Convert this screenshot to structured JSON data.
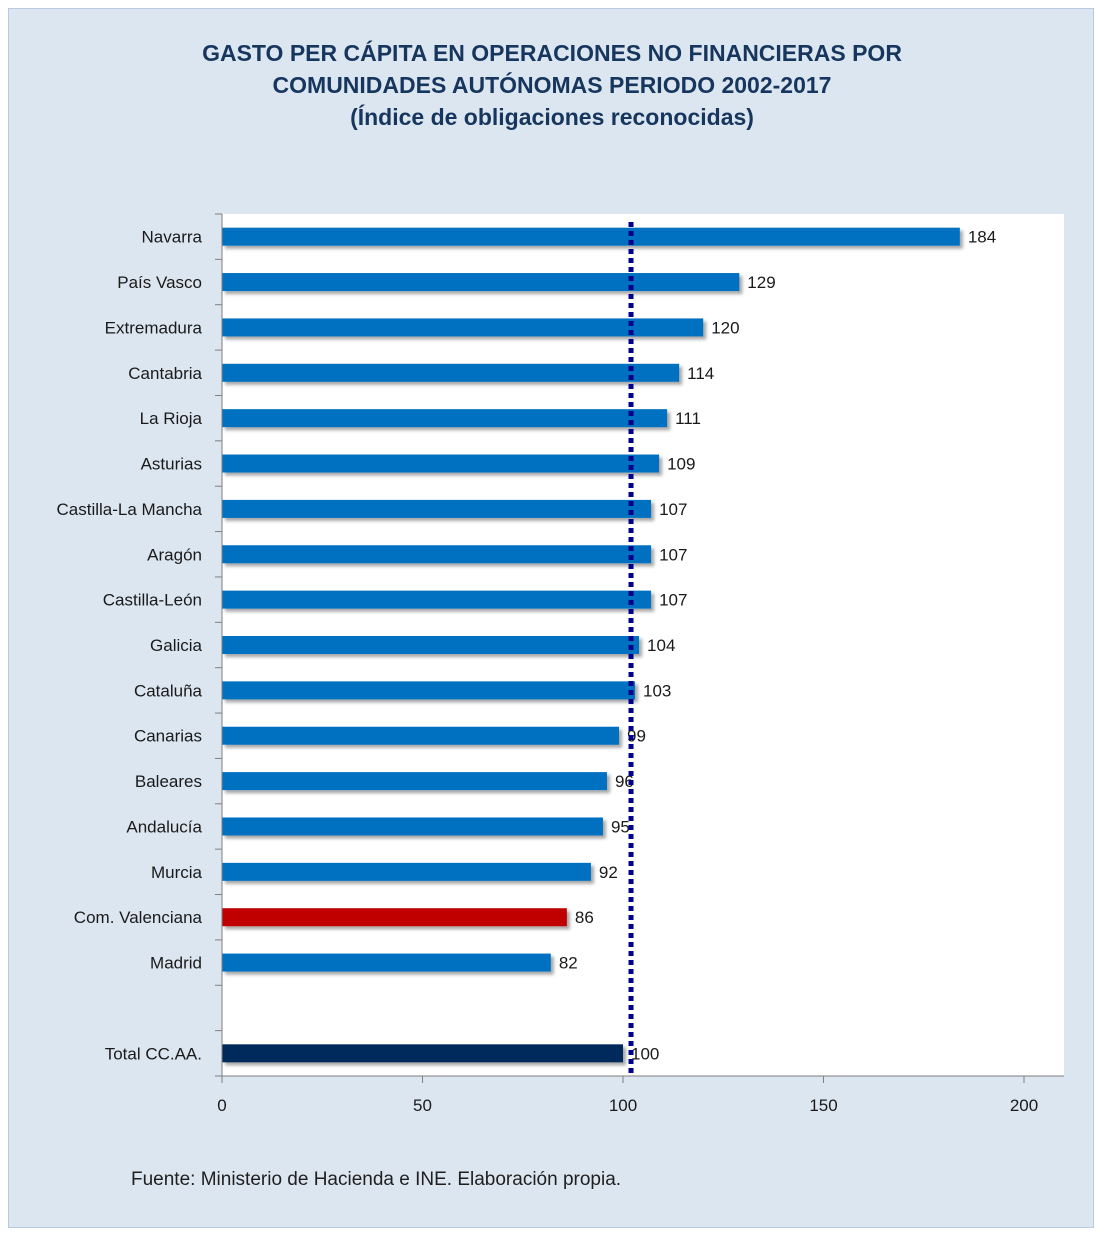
{
  "chart_title": {
    "line1": "GASTO PER CÁPITA EN OPERACIONES NO FINANCIERAS POR",
    "line2": "COMUNIDADES AUTÓNOMAS PERIODO 2002-2017",
    "line3": "(Índice de obligaciones reconocidas)"
  },
  "source_note": "Fuente: Ministerio de Hacienda e INE. Elaboración propia.",
  "chart_data": {
    "type": "bar",
    "orientation": "horizontal",
    "categories": [
      "Navarra",
      "País Vasco",
      "Extremadura",
      "Cantabria",
      "La Rioja",
      "Asturias",
      "Castilla-La Mancha",
      "Aragón",
      "Castilla-León",
      "Galicia",
      "Cataluña",
      "Canarias",
      "Baleares",
      "Andalucía",
      "Murcia",
      "Com. Valenciana",
      "Madrid",
      "",
      "Total CC.AA."
    ],
    "values": [
      184,
      129,
      120,
      114,
      111,
      109,
      107,
      107,
      107,
      104,
      103,
      99,
      96,
      95,
      92,
      86,
      82,
      null,
      100
    ],
    "data_labels": [
      "184",
      "129",
      "120",
      "114",
      "111",
      "109",
      "107",
      "107",
      "107",
      "104",
      "103",
      "99",
      "96",
      "95",
      "92",
      "86",
      "82",
      "",
      "100"
    ],
    "bar_colors": {
      "default": "#0070c0",
      "Com. Valenciana": "#c00000",
      "Total CC.AA.": "#002a5c"
    },
    "xlim": [
      0,
      200
    ],
    "x_ticks": [
      0,
      50,
      100,
      150,
      200
    ],
    "x_tick_labels": [
      "0",
      "50",
      "100",
      "150",
      "200"
    ],
    "reference_line": {
      "value": 102,
      "style": "dotted",
      "color": "#00008b"
    },
    "grid": false,
    "legend": "none",
    "title": "GASTO PER CÁPITA EN OPERACIONES NO FINANCIERAS POR COMUNIDADES AUTÓNOMAS PERIODO 2002-2017 (Índice de obligaciones reconocidas)",
    "xlabel": "",
    "ylabel": ""
  }
}
